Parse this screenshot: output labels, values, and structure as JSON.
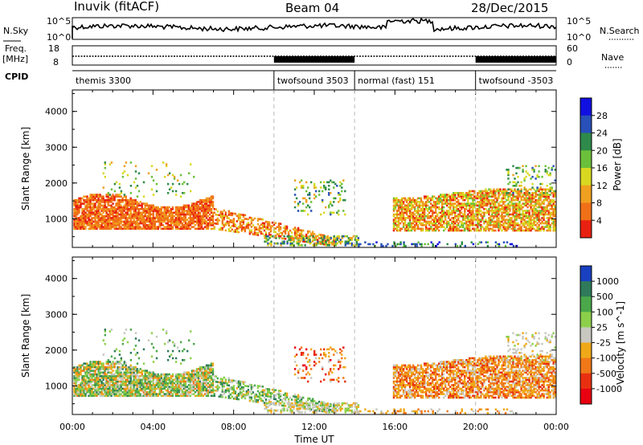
{
  "header": {
    "station": "Inuvik (fitACF)",
    "beam": "Beam 04",
    "date": "28/Dec/2015"
  },
  "top_panels": {
    "nsky_label": "N.Sky",
    "nsky_top": "10^5",
    "nsky_bottom": "10^0",
    "nsearch_label": "N.Search",
    "nsearch_top": "10^5",
    "nsearch_bottom": "10^0",
    "freq_label_1": "Freq.",
    "freq_label_2": "[MHz]",
    "freq_top": "18",
    "freq_bottom": "8",
    "nave_label": "Nave",
    "nave_top": "60",
    "nave_bottom": "0",
    "cpid_label": "CPID"
  },
  "cpid_segments": [
    {
      "label": "themis 3300",
      "start": 0,
      "end": 10
    },
    {
      "label": "twofsound 3503",
      "start": 10,
      "end": 14
    },
    {
      "label": "normal (fast) 151",
      "start": 14,
      "end": 20
    },
    {
      "label": "twofsound -3503",
      "start": 20,
      "end": 24
    }
  ],
  "chart_data": [
    {
      "type": "heatmap",
      "variable": "power",
      "ylabel": "Slant Range [km]",
      "yticks": [
        "1000",
        "2000",
        "3000",
        "4000"
      ],
      "ylim": [
        200,
        4600
      ],
      "xlim": [
        0,
        24
      ],
      "colorbar_label": "Power [dB]",
      "colorbar_ticks": [
        "4",
        "8",
        "12",
        "16",
        "20",
        "24",
        "28"
      ],
      "colorbar_colors": [
        "#1010e0",
        "#2850b8",
        "#2e8a4a",
        "#6bbf3a",
        "#d8d820",
        "#f0a020",
        "#f07018",
        "#e82010"
      ]
    },
    {
      "type": "heatmap",
      "variable": "velocity",
      "ylabel": "Slant Range [km]",
      "yticks": [
        "1000",
        "2000",
        "3000",
        "4000"
      ],
      "ylim": [
        200,
        4600
      ],
      "xlim": [
        0,
        24
      ],
      "xlabel": "Time UT",
      "xticks": [
        "00:00",
        "04:00",
        "08:00",
        "12:00",
        "16:00",
        "20:00",
        "00:00"
      ],
      "colorbar_label": "Velocity [m s^-1]",
      "colorbar_ticks": [
        "1000",
        "500",
        "100",
        "25",
        "-25",
        "-100",
        "-500",
        "-1000"
      ],
      "colorbar_colors": [
        "#1840c0",
        "#2e7a5a",
        "#4aa84a",
        "#8cd04a",
        "#c8c8c0",
        "#f0a818",
        "#f07818",
        "#e83010",
        "#e80010"
      ]
    }
  ],
  "colors": {
    "grid_dash": "#bbbbbb",
    "scatter_low": "#2050c0"
  }
}
